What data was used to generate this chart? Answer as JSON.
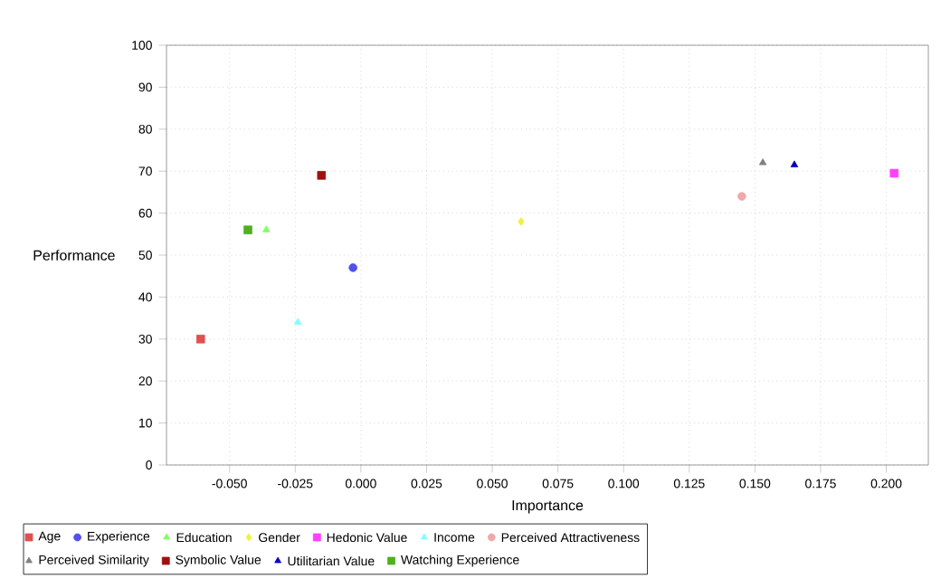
{
  "chart_data": {
    "type": "scatter",
    "xlabel": "Importance",
    "ylabel": "Performance",
    "xlim": [
      -0.074,
      0.216
    ],
    "ylim": [
      0,
      100
    ],
    "xticks": [
      {
        "value": -0.05,
        "label": "-0.050"
      },
      {
        "value": -0.025,
        "label": "-0.025"
      },
      {
        "value": 0,
        "label": "0.000"
      },
      {
        "value": 0.025,
        "label": "0.025"
      },
      {
        "value": 0.05,
        "label": "0.050"
      },
      {
        "value": 0.075,
        "label": "0.075"
      },
      {
        "value": 0.1,
        "label": "0.100"
      },
      {
        "value": 0.125,
        "label": "0.125"
      },
      {
        "value": 0.15,
        "label": "0.150"
      },
      {
        "value": 0.175,
        "label": "0.175"
      },
      {
        "value": 0.2,
        "label": "0.200"
      }
    ],
    "yticks": [
      0,
      10,
      20,
      30,
      40,
      50,
      60,
      70,
      80,
      90,
      100
    ],
    "grid": true,
    "legend": "bottom",
    "series": [
      {
        "name": "Age",
        "color": "#e05050",
        "marker": "square",
        "x": [
          -0.061
        ],
        "values": [
          30
        ]
      },
      {
        "name": "Experience",
        "color": "#5050f0",
        "marker": "circle",
        "x": [
          -0.003
        ],
        "values": [
          47
        ]
      },
      {
        "name": "Education",
        "color": "#80ff60",
        "marker": "triangle",
        "x": [
          -0.036
        ],
        "values": [
          56
        ]
      },
      {
        "name": "Gender",
        "color": "#f0f040",
        "marker": "diamond",
        "x": [
          0.061
        ],
        "values": [
          58
        ]
      },
      {
        "name": "Hedonic Value",
        "color": "#ff40ff",
        "marker": "square",
        "x": [
          0.203
        ],
        "values": [
          69.5
        ]
      },
      {
        "name": "Income",
        "color": "#80ffff",
        "marker": "triangle",
        "x": [
          -0.024
        ],
        "values": [
          34
        ]
      },
      {
        "name": "Perceived Attractiveness",
        "color": "#f0a8a8",
        "marker": "circle",
        "x": [
          0.145
        ],
        "values": [
          64
        ]
      },
      {
        "name": "Perceived Similarity",
        "color": "#808080",
        "marker": "triangle",
        "x": [
          0.153
        ],
        "values": [
          72
        ]
      },
      {
        "name": "Symbolic Value",
        "color": "#a01010",
        "marker": "square",
        "x": [
          -0.015
        ],
        "values": [
          69
        ]
      },
      {
        "name": "Utilitarian Value",
        "color": "#0000c0",
        "marker": "triangle",
        "x": [
          0.165
        ],
        "values": [
          71.5
        ]
      },
      {
        "name": "Watching Experience",
        "color": "#50b020",
        "marker": "square",
        "x": [
          -0.043
        ],
        "values": [
          56
        ]
      }
    ]
  }
}
